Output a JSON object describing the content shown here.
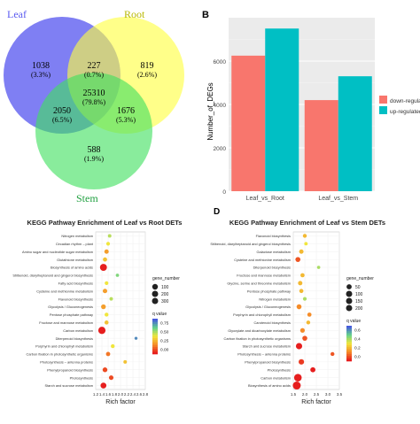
{
  "panels": {
    "A": {
      "type": "venn",
      "sets": [
        {
          "name": "Leaf",
          "color": "#5b5bf0"
        },
        {
          "name": "Root",
          "color": "#ffff40"
        },
        {
          "name": "Stem",
          "color": "#40e060"
        }
      ],
      "regions": [
        {
          "id": "leaf-only",
          "count": "1038",
          "pct": "(3.3%)"
        },
        {
          "id": "leaf-root",
          "count": "227",
          "pct": "(0.7%)"
        },
        {
          "id": "root-only",
          "count": "819",
          "pct": "(2.6%)"
        },
        {
          "id": "all",
          "count": "25310",
          "pct": "(79.8%)"
        },
        {
          "id": "leaf-stem",
          "count": "2050",
          "pct": "(6.5%)"
        },
        {
          "id": "root-stem",
          "count": "1676",
          "pct": "(5.3%)"
        },
        {
          "id": "stem-only",
          "count": "588",
          "pct": "(1.9%)"
        }
      ]
    },
    "B": {
      "letter": "B",
      "chart_data": {
        "type": "bar",
        "categories": [
          "Leaf_vs_Root",
          "Leaf_vs_Stem"
        ],
        "series": [
          {
            "name": "down-regulate",
            "color": "#f8766d",
            "values": [
              6250,
              4200
            ]
          },
          {
            "name": "up-regulated",
            "color": "#00bfc4",
            "values": [
              7500,
              5300
            ]
          }
        ],
        "ylabel": "Number_of_DEGs",
        "yticks": [
          "0",
          "2000",
          "4000",
          "6000"
        ],
        "ylim": [
          0,
          8000
        ],
        "grid": true,
        "legend": "right"
      }
    },
    "C": {
      "letter": "",
      "chart_data": {
        "type": "scatter",
        "title": "KEGG Pathway Enrichment of Leaf vs Root DETs",
        "xlabel": "Rich factor",
        "xlim": [
          1.2,
          2.8
        ],
        "xticks": [
          "1.2",
          "1.4",
          "1.6",
          "1.8",
          "2.0",
          "2.2",
          "2.4",
          "2.6",
          "2.8"
        ],
        "size_legend_title": "gene_number",
        "size_legend": [
          "100",
          "200",
          "300"
        ],
        "color_legend_title": "q value",
        "color_ticks": [
          "0.75",
          "0.50",
          "0.25",
          "0.00"
        ],
        "points": [
          {
            "pathway": "Nitrogen metabolism",
            "x": 1.65,
            "genes": 20,
            "q": 0.6
          },
          {
            "pathway": "Circadian rhythm – plant",
            "x": 1.6,
            "genes": 25,
            "q": 0.5
          },
          {
            "pathway": "Amino sugar and nucleotide sugar metabolism",
            "x": 1.55,
            "genes": 45,
            "q": 0.3
          },
          {
            "pathway": "Glutathione metabolism",
            "x": 1.5,
            "genes": 40,
            "q": 0.4
          },
          {
            "pathway": "Biosynthesis of amino acids",
            "x": 1.45,
            "genes": 180,
            "q": 0.0
          },
          {
            "pathway": "Stilbenoid, diarylheptanoid and gingerol biosynthesis",
            "x": 1.9,
            "genes": 15,
            "q": 0.7
          },
          {
            "pathway": "Fatty acid biosynthesis",
            "x": 1.55,
            "genes": 25,
            "q": 0.5
          },
          {
            "pathway": "Cysteine and methionine metabolism",
            "x": 1.5,
            "genes": 50,
            "q": 0.3
          },
          {
            "pathway": "Flavonoid biosynthesis",
            "x": 1.7,
            "genes": 20,
            "q": 0.6
          },
          {
            "pathway": "Glycolysis / Gluconeogenesis",
            "x": 1.45,
            "genes": 60,
            "q": 0.3
          },
          {
            "pathway": "Pentose phosphate pathway",
            "x": 1.55,
            "genes": 30,
            "q": 0.5
          },
          {
            "pathway": "Fructose and mannose metabolism",
            "x": 1.55,
            "genes": 35,
            "q": 0.4
          },
          {
            "pathway": "Carbon metabolism",
            "x": 1.4,
            "genes": 200,
            "q": 0.0
          },
          {
            "pathway": "Diterpenoid biosynthesis",
            "x": 2.5,
            "genes": 10,
            "q": 0.9
          },
          {
            "pathway": "Porphyrin and chlorophyll metabolism",
            "x": 1.75,
            "genes": 30,
            "q": 0.5
          },
          {
            "pathway": "Carbon fixation in photosynthetic organisms",
            "x": 1.6,
            "genes": 40,
            "q": 0.2
          },
          {
            "pathway": "Photosynthesis – antenna proteins",
            "x": 2.15,
            "genes": 20,
            "q": 0.4
          },
          {
            "pathway": "Phenylpropanoid biosynthesis",
            "x": 1.5,
            "genes": 60,
            "q": 0.1
          },
          {
            "pathway": "Photosynthesis",
            "x": 1.7,
            "genes": 50,
            "q": 0.1
          },
          {
            "pathway": "Starch and sucrose metabolism",
            "x": 1.45,
            "genes": 110,
            "q": 0.0
          }
        ]
      }
    },
    "D": {
      "letter": "D",
      "chart_data": {
        "type": "scatter",
        "title": "KEGG Pathway Enrichment of Leaf vs Stem DETs",
        "xlabel": "Rich factor",
        "xlim": [
          1.5,
          3.5
        ],
        "xticks": [
          "1.5",
          "2.0",
          "2.5",
          "3.0",
          "3.5"
        ],
        "size_legend_title": "gene_number",
        "size_legend": [
          "50",
          "100",
          "150",
          "200"
        ],
        "color_legend_title": "q value",
        "color_ticks": [
          "0.6",
          "0.4",
          "0.2",
          "0.0"
        ],
        "points": [
          {
            "pathway": "Flavonoid biosynthesis",
            "x": 2.0,
            "genes": 20,
            "q": 0.3
          },
          {
            "pathway": "Stilbenoid, diarylheptanoid and gingerol biosynthesis",
            "x": 2.05,
            "genes": 12,
            "q": 0.4
          },
          {
            "pathway": "Galactose metabolism",
            "x": 1.85,
            "genes": 30,
            "q": 0.3
          },
          {
            "pathway": "Cysteine and methionine metabolism",
            "x": 1.7,
            "genes": 45,
            "q": 0.1
          },
          {
            "pathway": "Diterpenoid biosynthesis",
            "x": 2.6,
            "genes": 10,
            "q": 0.5
          },
          {
            "pathway": "Fructose and mannose metabolism",
            "x": 1.9,
            "genes": 25,
            "q": 0.3
          },
          {
            "pathway": "Glycine, serine and threonine metabolism",
            "x": 1.8,
            "genes": 30,
            "q": 0.3
          },
          {
            "pathway": "Pentose phosphate pathway",
            "x": 1.85,
            "genes": 25,
            "q": 0.3
          },
          {
            "pathway": "Nitrogen metabolism",
            "x": 2.0,
            "genes": 15,
            "q": 0.5
          },
          {
            "pathway": "Glycolysis / Gluconeogenesis",
            "x": 1.75,
            "genes": 45,
            "q": 0.2
          },
          {
            "pathway": "Porphyrin and chlorophyll metabolism",
            "x": 2.2,
            "genes": 25,
            "q": 0.2
          },
          {
            "pathway": "Carotenoid biosynthesis",
            "x": 2.15,
            "genes": 20,
            "q": 0.3
          },
          {
            "pathway": "Glyoxylate and dicarboxylate metabolism",
            "x": 1.9,
            "genes": 35,
            "q": 0.2
          },
          {
            "pathway": "Carbon fixation in photosynthetic organisms",
            "x": 2.0,
            "genes": 45,
            "q": 0.1
          },
          {
            "pathway": "Starch and sucrose metabolism",
            "x": 1.75,
            "genes": 90,
            "q": 0.0
          },
          {
            "pathway": "Photosynthesis – antenna proteins",
            "x": 3.2,
            "genes": 20,
            "q": 0.1
          },
          {
            "pathway": "Phenylpropanoid biosynthesis",
            "x": 1.85,
            "genes": 60,
            "q": 0.05
          },
          {
            "pathway": "Photosynthesis",
            "x": 2.35,
            "genes": 50,
            "q": 0.0
          },
          {
            "pathway": "Carbon metabolism",
            "x": 1.7,
            "genes": 150,
            "q": 0.0
          },
          {
            "pathway": "Biosynthesis of amino acids",
            "x": 1.65,
            "genes": 170,
            "q": 0.0
          }
        ]
      }
    }
  }
}
